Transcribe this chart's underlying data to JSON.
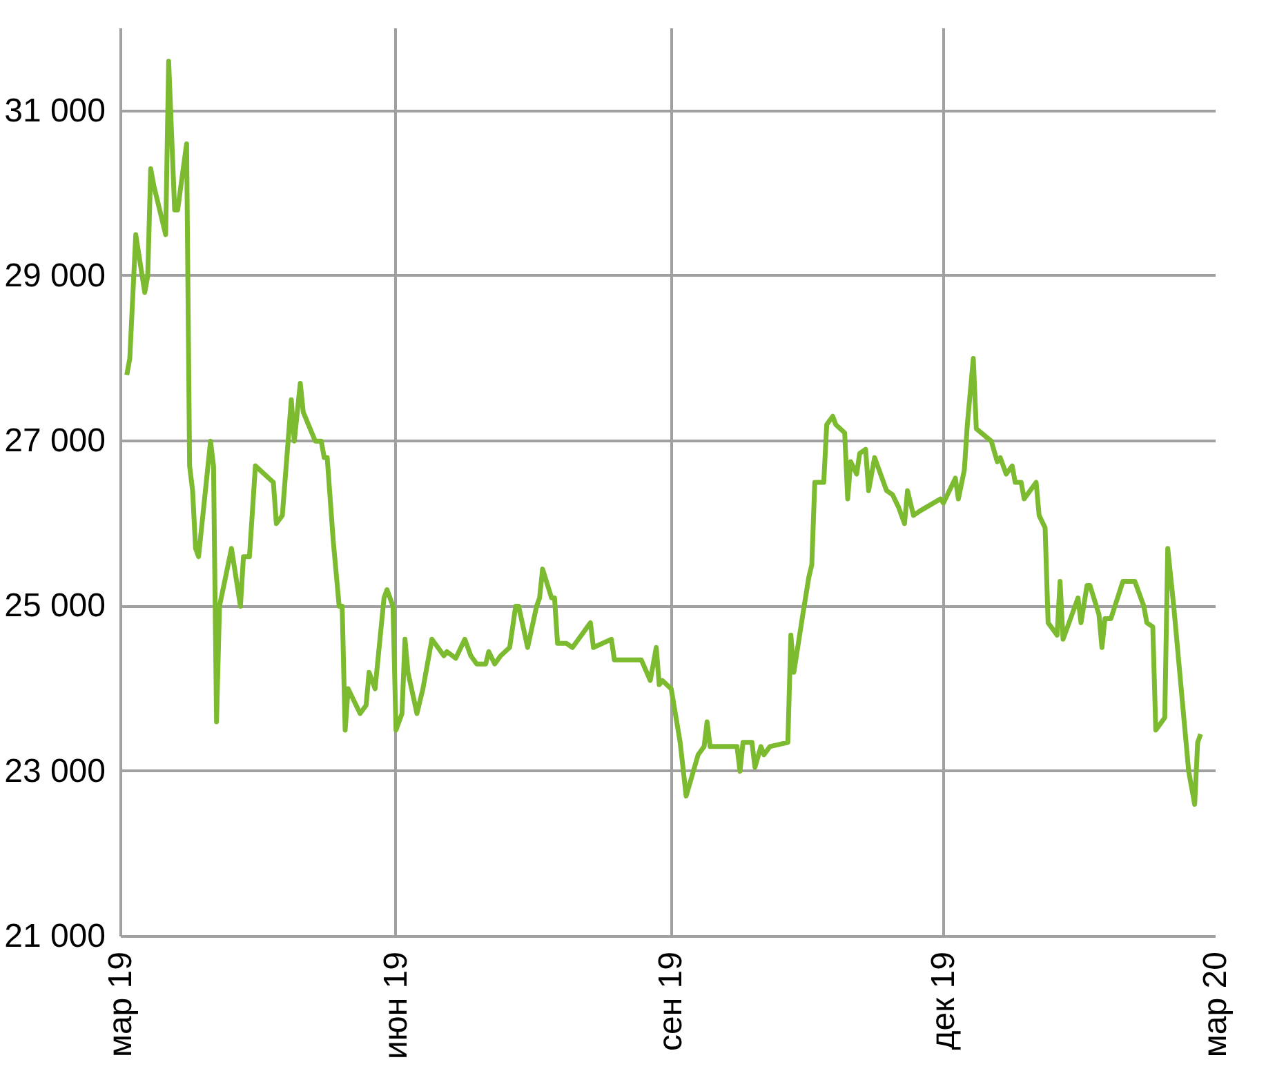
{
  "chart_data": {
    "type": "line",
    "xlim": [
      "2019-03-01",
      "2020-03-01"
    ],
    "ylim": [
      21000,
      32000
    ],
    "xticks": [
      {
        "value": "2019-03-01",
        "label": "мар 19"
      },
      {
        "value": "2019-06-01",
        "label": "июн 19"
      },
      {
        "value": "2019-09-01",
        "label": "сен 19"
      },
      {
        "value": "2019-12-01",
        "label": "дек 19"
      },
      {
        "value": "2020-03-01",
        "label": "мар 20"
      }
    ],
    "yticks": [
      {
        "value": 21000,
        "label": "21 000"
      },
      {
        "value": 23000,
        "label": "23 000"
      },
      {
        "value": 25000,
        "label": "25 000"
      },
      {
        "value": 27000,
        "label": "27 000"
      },
      {
        "value": 29000,
        "label": "29 000"
      },
      {
        "value": 31000,
        "label": "31 000"
      }
    ],
    "grid": true,
    "marker": "none",
    "line_style": "solid",
    "series": [
      {
        "color": "#7cba2f",
        "x": [
          "2019-03-03",
          "2019-03-04",
          "2019-03-06",
          "2019-03-09",
          "2019-03-10",
          "2019-03-11",
          "2019-03-12",
          "2019-03-16",
          "2019-03-17",
          "2019-03-19",
          "2019-03-20",
          "2019-03-23",
          "2019-03-24",
          "2019-03-25",
          "2019-03-26",
          "2019-03-27",
          "2019-03-31",
          "2019-04-01",
          "2019-04-02",
          "2019-04-03",
          "2019-04-07",
          "2019-04-10",
          "2019-04-11",
          "2019-04-13",
          "2019-04-15",
          "2019-04-21",
          "2019-04-22",
          "2019-04-24",
          "2019-04-27",
          "2019-04-28",
          "2019-04-30",
          "2019-05-01",
          "2019-05-05",
          "2019-05-07",
          "2019-05-08",
          "2019-05-09",
          "2019-05-11",
          "2019-05-13",
          "2019-05-14",
          "2019-05-15",
          "2019-05-16",
          "2019-05-20",
          "2019-05-22",
          "2019-05-23",
          "2019-05-25",
          "2019-05-28",
          "2019-05-29",
          "2019-05-31",
          "2019-06-01",
          "2019-06-03",
          "2019-06-04",
          "2019-06-05",
          "2019-06-08",
          "2019-06-10",
          "2019-06-13",
          "2019-06-17",
          "2019-06-18",
          "2019-06-21",
          "2019-06-24",
          "2019-06-25",
          "2019-06-26",
          "2019-06-28",
          "2019-07-01",
          "2019-07-02",
          "2019-07-04",
          "2019-07-06",
          "2019-07-09",
          "2019-07-11",
          "2019-07-12",
          "2019-07-15",
          "2019-07-18",
          "2019-07-19",
          "2019-07-20",
          "2019-07-23",
          "2019-07-24",
          "2019-07-25",
          "2019-07-28",
          "2019-07-30",
          "2019-08-05",
          "2019-08-06",
          "2019-08-12",
          "2019-08-13",
          "2019-08-22",
          "2019-08-25",
          "2019-08-27",
          "2019-08-28",
          "2019-08-29",
          "2019-09-01",
          "2019-09-04",
          "2019-09-06",
          "2019-09-10",
          "2019-09-12",
          "2019-09-13",
          "2019-09-14",
          "2019-09-23",
          "2019-09-24",
          "2019-09-25",
          "2019-09-28",
          "2019-09-29",
          "2019-10-01",
          "2019-10-02",
          "2019-10-04",
          "2019-10-10",
          "2019-10-11",
          "2019-10-12",
          "2019-10-15",
          "2019-10-17",
          "2019-10-18",
          "2019-10-19",
          "2019-10-22",
          "2019-10-23",
          "2019-10-25",
          "2019-10-26",
          "2019-10-29",
          "2019-10-30",
          "2019-10-31",
          "2019-11-02",
          "2019-11-03",
          "2019-11-05",
          "2019-11-06",
          "2019-11-08",
          "2019-11-12",
          "2019-11-14",
          "2019-11-16",
          "2019-11-18",
          "2019-11-19",
          "2019-11-21",
          "2019-11-23",
          "2019-11-30",
          "2019-12-01",
          "2019-12-05",
          "2019-12-06",
          "2019-12-08",
          "2019-12-09",
          "2019-12-11",
          "2019-12-12",
          "2019-12-17",
          "2019-12-19",
          "2019-12-20",
          "2019-12-22",
          "2019-12-24",
          "2019-12-25",
          "2019-12-27",
          "2019-12-28",
          "2020-01-01",
          "2020-01-02",
          "2020-01-04",
          "2020-01-05",
          "2020-01-08",
          "2020-01-09",
          "2020-01-10",
          "2020-01-13",
          "2020-01-15",
          "2020-01-16",
          "2020-01-18",
          "2020-01-19",
          "2020-01-22",
          "2020-01-23",
          "2020-01-24",
          "2020-01-26",
          "2020-01-30",
          "2020-02-03",
          "2020-02-06",
          "2020-02-07",
          "2020-02-09",
          "2020-02-10",
          "2020-02-13",
          "2020-02-14",
          "2020-02-16",
          "2020-02-21",
          "2020-02-23",
          "2020-02-24",
          "2020-02-25"
        ],
        "values": [
          27800,
          28000,
          29500,
          28800,
          29000,
          30300,
          30100,
          29500,
          31600,
          29800,
          29800,
          30600,
          26700,
          26400,
          25700,
          25600,
          27000,
          26700,
          23600,
          25000,
          25700,
          25000,
          25600,
          25600,
          26700,
          26500,
          26000,
          26100,
          27500,
          27000,
          27700,
          27350,
          27000,
          27000,
          26800,
          26800,
          25800,
          25000,
          25000,
          23500,
          24000,
          23700,
          23800,
          24200,
          24000,
          25100,
          25200,
          25000,
          23500,
          23700,
          24600,
          24200,
          23700,
          24000,
          24600,
          24400,
          24450,
          24370,
          24600,
          24500,
          24400,
          24300,
          24300,
          24450,
          24300,
          24400,
          24500,
          25000,
          25000,
          24500,
          25000,
          25100,
          25450,
          25100,
          25100,
          24550,
          24550,
          24500,
          24800,
          24500,
          24600,
          24350,
          24350,
          24100,
          24500,
          24050,
          24100,
          24000,
          23350,
          22700,
          23200,
          23300,
          23600,
          23300,
          23300,
          23000,
          23350,
          23350,
          23050,
          23300,
          23200,
          23300,
          23350,
          24650,
          24200,
          24900,
          25350,
          25500,
          26500,
          26500,
          27200,
          27300,
          27200,
          27100,
          26300,
          26750,
          26600,
          26850,
          26900,
          26400,
          26800,
          26400,
          26350,
          26200,
          26000,
          26400,
          26100,
          26150,
          26300,
          26250,
          26550,
          26300,
          26650,
          27200,
          28000,
          27150,
          27000,
          26750,
          26800,
          26600,
          26700,
          26500,
          26500,
          26300,
          26500,
          26100,
          25950,
          24800,
          24650,
          25300,
          24600,
          24900,
          25100,
          24800,
          25250,
          25250,
          24900,
          24500,
          24850,
          24850,
          25300,
          25300,
          25000,
          24800,
          24750,
          23500,
          23650,
          25700,
          25000,
          23000,
          22600,
          23350,
          23450
        ]
      }
    ]
  }
}
